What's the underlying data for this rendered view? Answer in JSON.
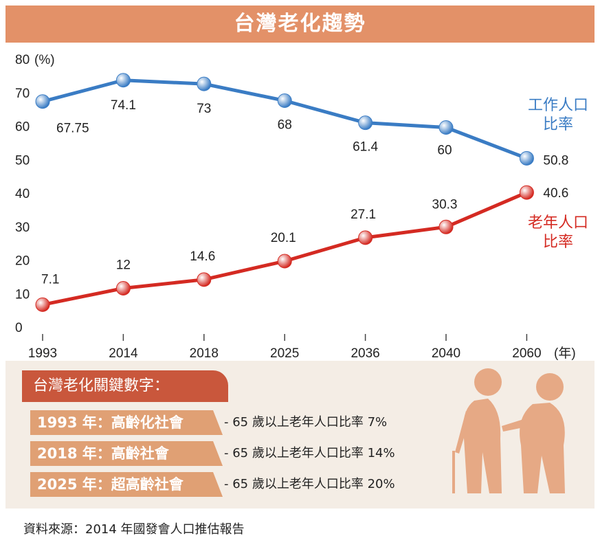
{
  "chart_data": {
    "type": "line",
    "title": "台灣老化趨勢",
    "y_label": "(%)",
    "x_label": "(年)",
    "categories": [
      "1993",
      "2014",
      "2018",
      "2025",
      "2036",
      "2040",
      "2060"
    ],
    "series": [
      {
        "name": "工作人口比率",
        "color": "#3a7cc4",
        "values": [
          67.75,
          74.1,
          73,
          68,
          61.4,
          60,
          50.8
        ]
      },
      {
        "name": "老年人口比率",
        "color": "#d42a22",
        "values": [
          7.1,
          12,
          14.6,
          20.1,
          27.1,
          30.3,
          40.6
        ]
      }
    ],
    "ylim": [
      0,
      80
    ],
    "yticks": [
      0,
      10,
      20,
      30,
      40,
      50,
      60,
      70,
      80
    ],
    "grid": false
  },
  "key_facts": {
    "title": "台灣老化關鍵數字：",
    "items": [
      {
        "label": "1993 年：高齡化社會",
        "desc": "- 65 歲以上老年人口比率 7%"
      },
      {
        "label": "2018 年：高齡社會",
        "desc": "- 65 歲以上老年人口比率 14%"
      },
      {
        "label": "2025 年：超高齡社會",
        "desc": "- 65 歲以上老年人口比率 20%"
      }
    ]
  },
  "source": "資料來源：2014 年國發會人口推估報告"
}
